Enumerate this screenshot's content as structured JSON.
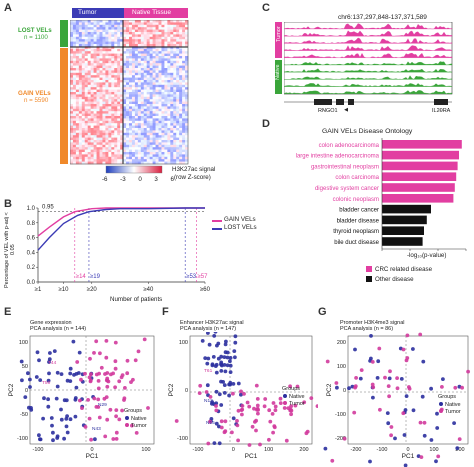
{
  "panel_labels": {
    "a": "A",
    "b": "B",
    "c": "C",
    "d": "D",
    "e": "E",
    "f": "F",
    "g": "G"
  },
  "heatmap": {
    "col_tumor": "Tumor",
    "col_native": "Native Tissue",
    "lost_label": "LOST VELs",
    "lost_n": "n = 1100",
    "gain_label": "GAIN VELs",
    "gain_n": "n = 5590",
    "legend_title": "H3K27ac signal",
    "legend_sub": "(row Z-score)",
    "legend_ticks": [
      "-6",
      "-3",
      "0",
      "3",
      "6"
    ],
    "colors": {
      "tumor": "#3b3bb5",
      "native": "#e23ea1",
      "lost": "#3aa53a",
      "gain": "#f0892a"
    }
  },
  "tracks": {
    "coord": "chr6:137,297,848-137,371,589",
    "tumor_label": "Tumor",
    "native_label": "Native",
    "gene_left": "RNGO1",
    "gene_right": "IL20RA"
  },
  "chart_data": [
    {
      "type": "line",
      "ylabel": "Percentage of VEL with p-adj < 0.05",
      "xlabel": "Number of patients",
      "yticks": [
        "0.0",
        "0.2",
        "0.4",
        "0.6",
        "0.8",
        "1.0"
      ],
      "xticks": [
        "≥1",
        "≥10",
        "≥20",
        "≥40",
        "≥60"
      ],
      "hline_label": "0.95",
      "threshold_labels": [
        "≥14",
        "≥19",
        "≥53",
        "≥57"
      ],
      "series": [
        {
          "name": "GAIN VELs",
          "color": "#e23ea1",
          "x": [
            1,
            5,
            10,
            14,
            20,
            25,
            30,
            40,
            50,
            60
          ],
          "y": [
            0.62,
            0.74,
            0.88,
            0.95,
            0.99,
            1.0,
            1.0,
            1.0,
            1.0,
            1.0
          ]
        },
        {
          "name": "LOST VELs",
          "color": "#3b3bb5",
          "x": [
            1,
            5,
            10,
            15,
            19,
            25,
            30,
            40,
            53,
            60
          ],
          "y": [
            0.43,
            0.6,
            0.79,
            0.9,
            0.95,
            0.98,
            0.99,
            0.99,
            1.0,
            1.0
          ]
        }
      ]
    },
    {
      "type": "bar",
      "title": "GAIN VELs Disease Ontology",
      "xlabel": "-log₁₀(p-value)",
      "xticks": [
        "0",
        "20",
        "40",
        "60"
      ],
      "categories": [
        "colon adenocarcinoma",
        "large intestine adenocarcinoma",
        "gastrointestinal neoplasm",
        "colon carcinoma",
        "digestive system cancer",
        "colonic neoplasm",
        "bladder cancer",
        "bladder disease",
        "thyroid neoplasm",
        "bile duct disease"
      ],
      "values": [
        57,
        55,
        54,
        53,
        52,
        51,
        35,
        32,
        30,
        29
      ],
      "groups": [
        "crc",
        "crc",
        "crc",
        "crc",
        "crc",
        "crc",
        "other",
        "other",
        "other",
        "other"
      ],
      "legend": [
        "CRC related disease",
        "Other disease"
      ],
      "colors": {
        "crc": "#e23ea1",
        "other": "#111111"
      }
    },
    {
      "type": "scatter",
      "title": "Gene expression",
      "subtitle": "PCA analysis (n = 144)",
      "xlabel": "PC1",
      "ylabel": "PC2",
      "xticks": [
        "-100",
        "0",
        "100"
      ],
      "yticks": [
        "100",
        "50",
        "0",
        "-50",
        "-100"
      ],
      "legend_title": "Groups",
      "legend": [
        "Native",
        "Tumor"
      ]
    },
    {
      "type": "scatter",
      "title": "Enhancer H3K27ac signal",
      "subtitle": "PCA analysis (n = 147)",
      "xlabel": "PC1",
      "ylabel": "PC2",
      "xticks": [
        "-100",
        "0",
        "100",
        "200"
      ],
      "yticks": [
        "100",
        "0",
        "-100"
      ],
      "legend_title": "Groups",
      "legend": [
        "Native",
        "Tumor"
      ]
    },
    {
      "type": "scatter",
      "title": "Promoter H3K4me3 signal",
      "subtitle": "PCA analysis (n = 86)",
      "xlabel": "PC1",
      "ylabel": "PC2",
      "xticks": [
        "-200",
        "-100",
        "0",
        "100",
        "200"
      ],
      "yticks": [
        "200",
        "100",
        "0",
        "-100",
        "-200"
      ],
      "legend_title": "Groups",
      "legend": [
        "Native",
        "Tumor"
      ]
    }
  ],
  "colors": {
    "native": "#2b2f9e",
    "tumor": "#d23a9c"
  }
}
